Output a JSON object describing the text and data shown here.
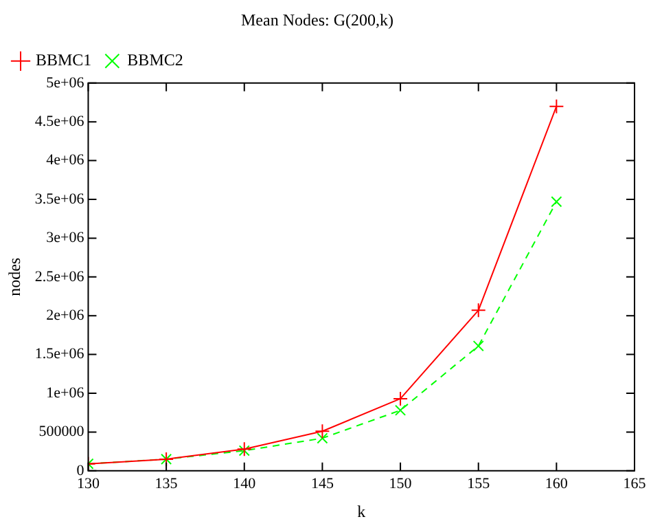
{
  "chart_data": {
    "type": "line",
    "title": "Mean Nodes: G(200,k)",
    "xlabel": "k",
    "ylabel": "nodes",
    "x": [
      130,
      135,
      140,
      145,
      150,
      155,
      160
    ],
    "series": [
      {
        "name": "BBMC1",
        "color": "#ff0000",
        "marker": "cross",
        "line_style": "solid",
        "values": [
          90000,
          150000,
          280000,
          510000,
          930000,
          2070000,
          4700000
        ]
      },
      {
        "name": "BBMC2",
        "color": "#00ff00",
        "marker": "x",
        "line_style": "dashed",
        "values": [
          90000,
          150000,
          260000,
          420000,
          780000,
          1610000,
          3470000
        ]
      }
    ],
    "xlim": [
      130,
      165
    ],
    "xticks": [
      130,
      135,
      140,
      145,
      150,
      155,
      160,
      165
    ],
    "ylim": [
      0,
      5000000
    ],
    "yticks": [
      0,
      500000,
      {
        "value": 1000000,
        "label": "1e+06"
      },
      {
        "value": 1500000,
        "label": "1.5e+06"
      },
      {
        "value": 2000000,
        "label": "2e+06"
      },
      {
        "value": 2500000,
        "label": "2.5e+06"
      },
      {
        "value": 3000000,
        "label": "3e+06"
      },
      {
        "value": 3500000,
        "label": "3.5e+06"
      },
      {
        "value": 4000000,
        "label": "4e+06"
      },
      {
        "value": 4500000,
        "label": "4.5e+06"
      },
      {
        "value": 5000000,
        "label": "5e+06"
      }
    ],
    "grid": false,
    "legend": "top left"
  }
}
